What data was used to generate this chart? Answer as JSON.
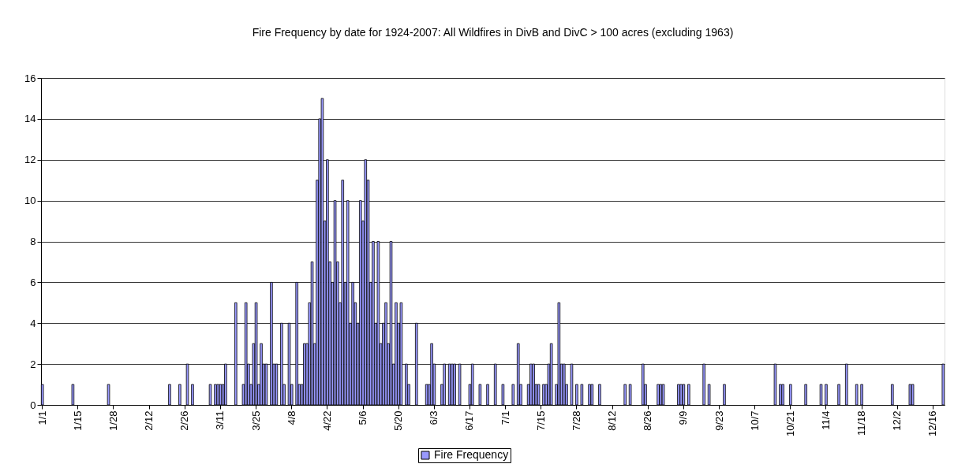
{
  "chart_data": {
    "type": "bar",
    "title": "Fire Frequency by date for 1924-2007: All Wildfires in DivB and DivC > 100 acres (excluding 1963)",
    "categories": [
      "1/1",
      null,
      null,
      null,
      null,
      null,
      null,
      null,
      null,
      null,
      null,
      null,
      null,
      null,
      "1/15",
      null,
      null,
      null,
      null,
      null,
      null,
      null,
      null,
      null,
      null,
      null,
      null,
      null,
      "1/28",
      null,
      null,
      null,
      null,
      null,
      null,
      null,
      null,
      null,
      null,
      null,
      null,
      null,
      "2/12",
      null,
      null,
      null,
      null,
      null,
      null,
      null,
      null,
      null,
      null,
      null,
      null,
      null,
      "2/26",
      null,
      null,
      null,
      null,
      null,
      null,
      null,
      null,
      null,
      null,
      null,
      null,
      null,
      "3/11",
      null,
      null,
      null,
      null,
      null,
      null,
      null,
      null,
      null,
      null,
      null,
      null,
      null,
      "3/25",
      null,
      null,
      null,
      null,
      null,
      null,
      null,
      null,
      null,
      null,
      null,
      null,
      null,
      "4/8",
      null,
      null,
      null,
      null,
      null,
      null,
      null,
      null,
      null,
      null,
      null,
      null,
      null,
      "4/22",
      null,
      null,
      null,
      null,
      null,
      null,
      null,
      null,
      null,
      null,
      null,
      null,
      null,
      "5/6",
      null,
      null,
      null,
      null,
      null,
      null,
      null,
      null,
      null,
      null,
      null,
      null,
      null,
      "5/20",
      null,
      null,
      null,
      null,
      null,
      null,
      null,
      null,
      null,
      null,
      null,
      null,
      null,
      "6/3",
      null,
      null,
      null,
      null,
      null,
      null,
      null,
      null,
      null,
      null,
      null,
      null,
      null,
      "6/17",
      null,
      null,
      null,
      null,
      null,
      null,
      null,
      null,
      null,
      null,
      null,
      null,
      null,
      "7/1",
      null,
      null,
      null,
      null,
      null,
      null,
      null,
      null,
      null,
      null,
      null,
      null,
      null,
      "7/15",
      null,
      null,
      null,
      null,
      null,
      null,
      null,
      null,
      null,
      null,
      null,
      null,
      null,
      "7/28",
      null,
      null,
      null,
      null,
      null,
      null,
      null,
      null,
      null,
      null,
      null,
      null,
      null,
      "8/12",
      null,
      null,
      null,
      null,
      null,
      null,
      null,
      null,
      null,
      null,
      null,
      null,
      null,
      "8/26",
      null,
      null,
      null,
      null,
      null,
      null,
      null,
      null,
      null,
      null,
      null,
      null,
      null,
      "9/9",
      null,
      null,
      null,
      null,
      null,
      null,
      null,
      null,
      null,
      null,
      null,
      null,
      null,
      "9/23",
      null,
      null,
      null,
      null,
      null,
      null,
      null,
      null,
      null,
      null,
      null,
      null,
      null,
      "10/7",
      null,
      null,
      null,
      null,
      null,
      null,
      null,
      null,
      null,
      null,
      null,
      null,
      null,
      "10/21",
      null,
      null,
      null,
      null,
      null,
      null,
      null,
      null,
      null,
      null,
      null,
      null,
      null,
      "11/4",
      null,
      null,
      null,
      null,
      null,
      null,
      null,
      null,
      null,
      null,
      null,
      null,
      null,
      "11/18",
      null,
      null,
      null,
      null,
      null,
      null,
      null,
      null,
      null,
      null,
      null,
      null,
      null,
      "12/2",
      null,
      null,
      null,
      null,
      null,
      null,
      null,
      null,
      null,
      null,
      null,
      null,
      null,
      "12/16",
      null,
      null,
      null,
      null
    ],
    "series": [
      {
        "name": "Fire Frequency",
        "color": "#9999ff",
        "values": [
          1,
          0,
          0,
          0,
          0,
          0,
          0,
          0,
          0,
          0,
          0,
          0,
          1,
          0,
          0,
          0,
          0,
          0,
          0,
          0,
          0,
          0,
          0,
          0,
          0,
          0,
          1,
          0,
          0,
          0,
          0,
          0,
          0,
          0,
          0,
          0,
          0,
          0,
          0,
          0,
          0,
          0,
          0,
          0,
          0,
          0,
          0,
          0,
          0,
          0,
          1,
          0,
          0,
          0,
          1,
          0,
          0,
          2,
          0,
          1,
          0,
          0,
          0,
          0,
          0,
          0,
          1,
          0,
          1,
          1,
          1,
          1,
          2,
          0,
          0,
          0,
          5,
          0,
          0,
          1,
          5,
          2,
          1,
          3,
          5,
          1,
          3,
          2,
          2,
          0,
          6,
          2,
          2,
          0,
          4,
          1,
          0,
          4,
          1,
          0,
          6,
          1,
          1,
          3,
          3,
          5,
          7,
          3,
          11,
          14,
          15,
          9,
          12,
          7,
          6,
          10,
          7,
          5,
          11,
          6,
          10,
          4,
          6,
          5,
          4,
          10,
          9,
          12,
          11,
          6,
          8,
          4,
          8,
          3,
          4,
          5,
          3,
          8,
          2,
          5,
          4,
          5,
          0,
          2,
          1,
          0,
          0,
          4,
          0,
          0,
          0,
          1,
          1,
          3,
          2,
          0,
          0,
          1,
          2,
          0,
          2,
          2,
          2,
          0,
          2,
          0,
          0,
          0,
          1,
          2,
          0,
          0,
          1,
          0,
          0,
          1,
          0,
          0,
          2,
          0,
          0,
          1,
          0,
          0,
          0,
          1,
          0,
          3,
          1,
          0,
          0,
          1,
          2,
          2,
          1,
          1,
          0,
          1,
          1,
          2,
          3,
          0,
          1,
          5,
          2,
          2,
          1,
          0,
          2,
          0,
          1,
          0,
          1,
          0,
          0,
          1,
          1,
          0,
          0,
          1,
          0,
          0,
          0,
          0,
          0,
          0,
          0,
          0,
          0,
          1,
          0,
          1,
          0,
          0,
          0,
          0,
          2,
          1,
          0,
          0,
          0,
          0,
          1,
          1,
          1,
          0,
          0,
          0,
          0,
          0,
          1,
          1,
          1,
          0,
          1,
          0,
          0,
          0,
          0,
          0,
          2,
          0,
          1,
          0,
          0,
          0,
          0,
          0,
          1,
          0,
          0,
          0,
          0,
          0,
          0,
          0,
          0,
          0,
          0,
          0,
          0,
          0,
          0,
          0,
          0,
          0,
          0,
          0,
          2,
          0,
          1,
          1,
          0,
          0,
          1,
          0,
          0,
          0,
          0,
          0,
          1,
          0,
          0,
          0,
          0,
          0,
          1,
          0,
          1,
          0,
          0,
          0,
          0,
          1,
          0,
          0,
          2,
          0,
          0,
          0,
          1,
          0,
          1,
          0,
          0,
          0,
          0,
          0,
          0,
          0,
          0,
          0,
          0,
          0,
          1,
          0,
          0,
          0,
          0,
          0,
          0,
          1,
          1,
          0,
          0,
          0,
          0,
          0,
          0,
          0,
          0,
          0,
          0,
          0,
          2
        ]
      }
    ],
    "ylim": [
      0,
      16
    ],
    "yticks": [
      0,
      2,
      4,
      6,
      8,
      10,
      12,
      14,
      16
    ],
    "grid": "y",
    "legend": "bottom"
  }
}
